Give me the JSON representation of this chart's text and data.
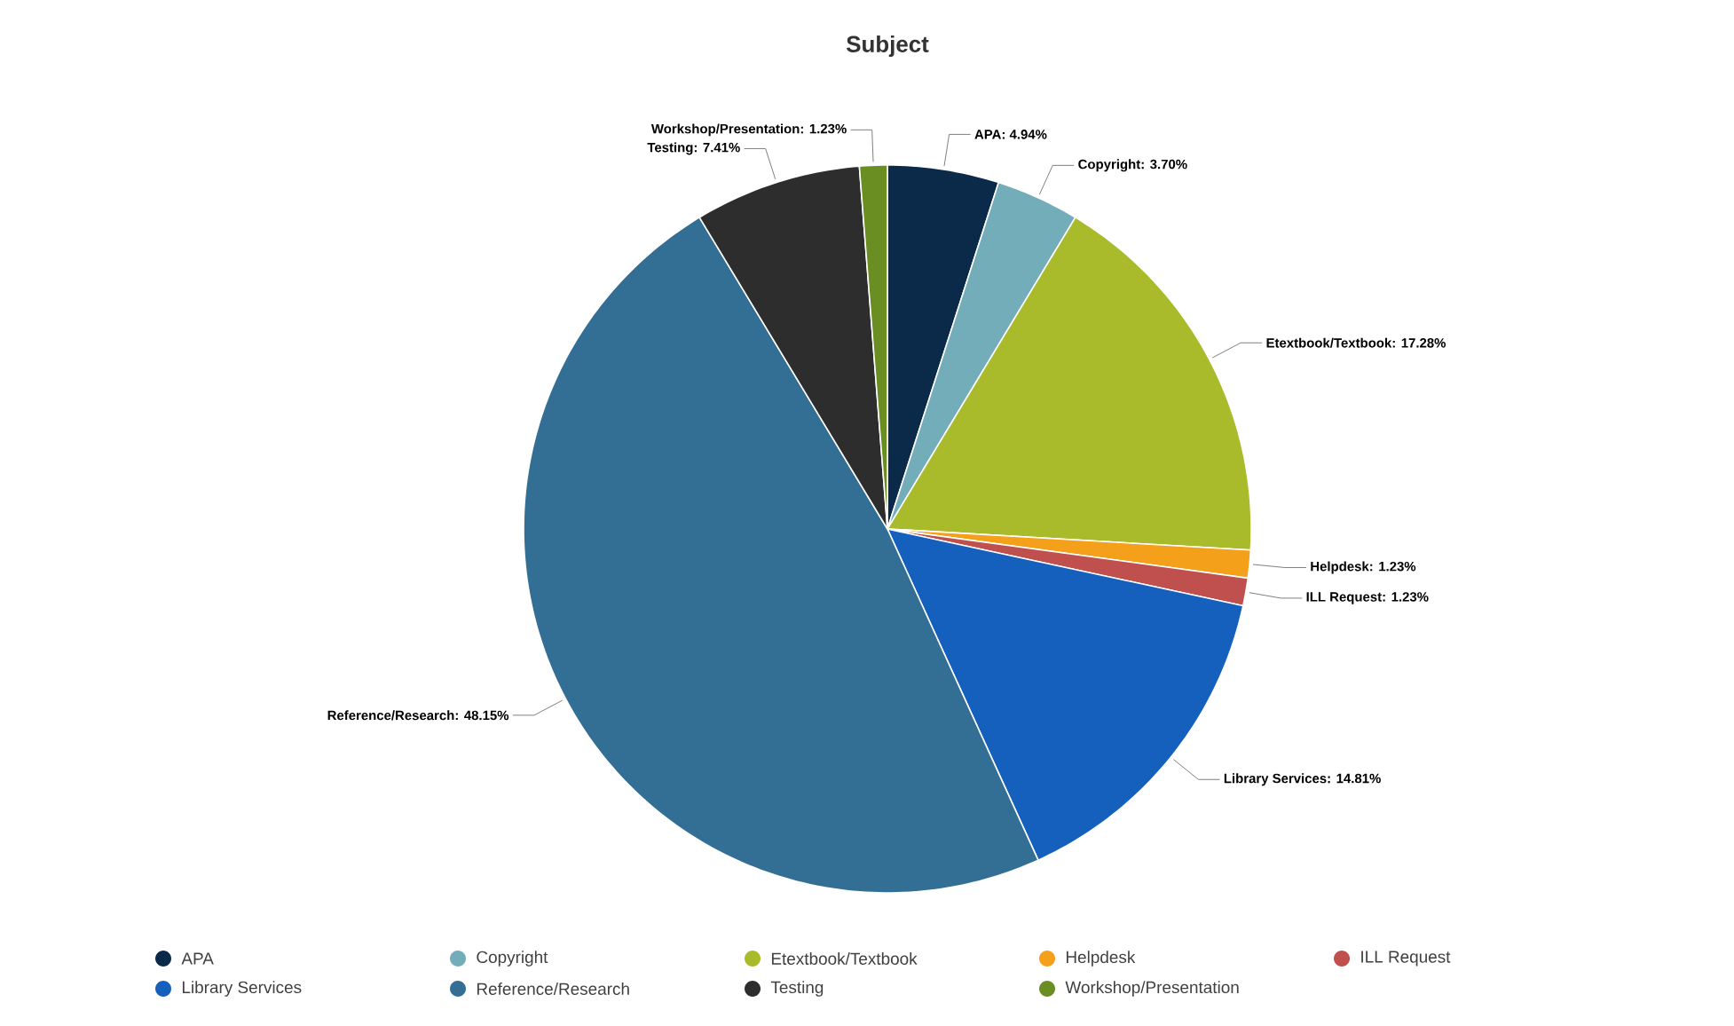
{
  "chart_data": {
    "type": "pie",
    "title": "Subject",
    "categories": [
      "APA",
      "Copyright",
      "Etextbook/Textbook",
      "Helpdesk",
      "ILL Request",
      "Library Services",
      "Reference/Research",
      "Testing",
      "Workshop/Presentation"
    ],
    "values": [
      4.94,
      3.7,
      17.28,
      1.23,
      1.23,
      14.81,
      48.15,
      7.41,
      1.23
    ],
    "value_labels": [
      "APA: 4.94%",
      "Copyright: 3.70%",
      "Etextbook/Textbook: 17.28%",
      "Helpdesk: 1.23%",
      "ILL Request: 1.23%",
      "Library Services: 14.81%",
      "Reference/Research: 48.15%",
      "Testing: 7.41%",
      "Workshop/Presentation: 1.23%"
    ],
    "colors": [
      "#0b2a4a",
      "#72adb9",
      "#a9ba2a",
      "#f5a01a",
      "#c0504d",
      "#1560bd",
      "#336e94",
      "#2d2d2d",
      "#6b8e23"
    ],
    "legend": "bottom"
  }
}
